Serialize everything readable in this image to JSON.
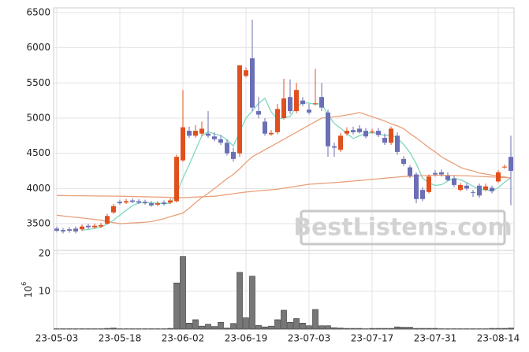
{
  "chart_data": {
    "type": "candlestick",
    "categories": [
      "23-05-03",
      null,
      null,
      null,
      null,
      null,
      null,
      null,
      null,
      null,
      "23-05-18",
      null,
      null,
      null,
      null,
      null,
      null,
      null,
      null,
      null,
      "23-06-02",
      null,
      null,
      null,
      null,
      null,
      null,
      null,
      null,
      null,
      "23-06-19",
      null,
      null,
      null,
      null,
      null,
      null,
      null,
      null,
      null,
      "23-07-03",
      null,
      null,
      null,
      null,
      null,
      null,
      null,
      null,
      null,
      "23-07-17",
      null,
      null,
      null,
      null,
      null,
      null,
      null,
      null,
      null,
      "23-07-31",
      null,
      null,
      null,
      null,
      null,
      null,
      null,
      null,
      null,
      "23-08-14",
      null,
      null
    ],
    "open": [
      3430,
      3410,
      3420,
      3430,
      3420,
      3470,
      3450,
      3460,
      3500,
      3660,
      3810,
      3800,
      3830,
      3820,
      3810,
      3790,
      3770,
      3800,
      3800,
      3820,
      4400,
      4820,
      4750,
      4780,
      4780,
      4740,
      4700,
      4650,
      4520,
      4500,
      5600,
      5850,
      5100,
      4950,
      4770,
      4800,
      5000,
      5300,
      5100,
      5250,
      5120,
      5200,
      5300,
      5080,
      4600,
      4550,
      4780,
      4830,
      4850,
      4820,
      4800,
      4820,
      4720,
      4650,
      4750,
      4420,
      4300,
      4200,
      3980,
      3950,
      4220,
      4230,
      4180,
      4140,
      3980,
      4040,
      3950,
      4040,
      3980,
      4010,
      4100,
      4300,
      4450
    ],
    "high": [
      3460,
      3440,
      3450,
      3460,
      3490,
      3500,
      3500,
      3510,
      3640,
      3780,
      3840,
      3850,
      3860,
      3850,
      3840,
      3820,
      3820,
      3830,
      3860,
      4480,
      5400,
      4880,
      4900,
      4950,
      5100,
      4800,
      4760,
      4700,
      4580,
      5750,
      5720,
      6400,
      5300,
      5000,
      4830,
      5200,
      5560,
      5550,
      5500,
      5300,
      5200,
      5700,
      5500,
      5120,
      4650,
      4790,
      4870,
      4880,
      4900,
      4860,
      4850,
      4860,
      4780,
      4880,
      4800,
      4460,
      4330,
      4230,
      4020,
      4200,
      4260,
      4270,
      4230,
      4180,
      4080,
      4080,
      3980,
      4070,
      4070,
      4040,
      4260,
      4340,
      4750
    ],
    "low": [
      3380,
      3360,
      3370,
      3360,
      3400,
      3420,
      3430,
      3440,
      3490,
      3640,
      3770,
      3780,
      3790,
      3780,
      3770,
      3740,
      3750,
      3760,
      3780,
      3800,
      4380,
      4720,
      4720,
      4750,
      4720,
      4670,
      4620,
      4470,
      4380,
      4450,
      5580,
      5100,
      5000,
      4750,
      4750,
      4770,
      4980,
      5060,
      5070,
      5170,
      5050,
      5180,
      5100,
      4450,
      4450,
      4520,
      4750,
      4770,
      4780,
      4710,
      4780,
      4730,
      4620,
      4620,
      4480,
      4320,
      4150,
      3790,
      3820,
      3930,
      4170,
      4170,
      4100,
      4020,
      3960,
      3970,
      3880,
      3870,
      3960,
      3930,
      4080,
      4280,
      3760
    ],
    "close": [
      3400,
      3390,
      3400,
      3390,
      3460,
      3450,
      3470,
      3480,
      3610,
      3750,
      3790,
      3820,
      3810,
      3800,
      3790,
      3760,
      3790,
      3780,
      3830,
      4450,
      4870,
      4750,
      4820,
      4850,
      4750,
      4700,
      4650,
      4500,
      4420,
      5750,
      5680,
      5150,
      5050,
      4780,
      4790,
      5130,
      5280,
      5100,
      5400,
      5200,
      5080,
      5210,
      5150,
      4600,
      4580,
      4750,
      4820,
      4800,
      4800,
      4740,
      4810,
      4760,
      4650,
      4850,
      4520,
      4350,
      4180,
      3850,
      3850,
      4170,
      4200,
      4200,
      4120,
      4050,
      4050,
      4000,
      3940,
      3900,
      4030,
      3960,
      4230,
      4310,
      4250
    ],
    "up_color": "#e0501e",
    "down_color": "#6b6fb5",
    "moving_averages": [
      {
        "color": "#7fd8be",
        "values": [
          null,
          null,
          null,
          null,
          3408,
          3418,
          3434,
          3450,
          3494,
          3552,
          3620,
          3690,
          3756,
          3794,
          3804,
          3796,
          3792,
          3784,
          3792,
          3922,
          4146,
          4338,
          4544,
          4748,
          4808,
          4774,
          4754,
          4690,
          4604,
          4804,
          5000,
          5100,
          5210,
          5282,
          5090,
          4980,
          5006,
          5024,
          5160,
          5222,
          5212,
          5198,
          5208,
          5048,
          4924,
          4858,
          4780,
          4710,
          4750,
          4782,
          4794,
          4782,
          4752,
          4762,
          4716,
          4626,
          4510,
          4350,
          4150,
          4080,
          4044,
          4054,
          4108,
          4148,
          4124,
          4084,
          4032,
          3988,
          3984,
          3966,
          4012,
          4090,
          4150
        ]
      },
      {
        "color": "#e8a07a",
        "values": [
          3620,
          3610,
          3600,
          3590,
          3580,
          3570,
          3560,
          3550,
          3530,
          3515,
          3500,
          3505,
          3510,
          3515,
          3520,
          3530,
          3550,
          3570,
          3600,
          3625,
          3650,
          3720,
          3800,
          3870,
          3930,
          4000,
          4070,
          4140,
          4200,
          4280,
          4370,
          4450,
          4500,
          4550,
          4600,
          4650,
          4700,
          4750,
          4800,
          4850,
          4900,
          4950,
          5000,
          5010,
          5020,
          5030,
          5045,
          5060,
          5080,
          5050,
          5020,
          4990,
          4960,
          4920,
          4890,
          4850,
          4780,
          4720,
          4650,
          4580,
          4520,
          4450,
          4400,
          4350,
          4300,
          4270,
          4250,
          4220,
          4205,
          4190,
          4180,
          4165,
          4150
        ]
      },
      {
        "color": "#e8a07a",
        "values": [
          3900,
          3899,
          3898,
          3897,
          3896,
          3895,
          3894,
          3893,
          3892,
          3891,
          3890,
          3888,
          3886,
          3884,
          3882,
          3880,
          3878,
          3876,
          3874,
          3872,
          3870,
          3874,
          3878,
          3882,
          3886,
          3890,
          3902,
          3914,
          3926,
          3938,
          3950,
          3958,
          3966,
          3974,
          3982,
          3990,
          4004,
          4018,
          4032,
          4046,
          4060,
          4066,
          4072,
          4078,
          4084,
          4090,
          4098,
          4106,
          4114,
          4122,
          4130,
          4138,
          4146,
          4154,
          4162,
          4170,
          4174,
          4178,
          4182,
          4186,
          4190,
          4188,
          4186,
          4184,
          4182,
          4180,
          4176,
          4172,
          4168,
          4164,
          4160,
          4155,
          4150
        ]
      }
    ],
    "ylim": [
      3120,
      6567
    ],
    "yticks": [
      3500,
      4000,
      4500,
      5000,
      5500,
      6000,
      6500
    ],
    "grid": true,
    "volume": {
      "color": "#777777",
      "ylim": [
        0,
        20.8
      ],
      "yticks": [
        10,
        20
      ],
      "ylabel_base": "10",
      "ylabel_exponent": "6",
      "values": [
        0.1,
        0.1,
        0.1,
        0.1,
        0.1,
        0.1,
        0.1,
        0.1,
        0.2,
        0.3,
        0.1,
        0.1,
        0.1,
        0.1,
        0.1,
        0.1,
        0.1,
        0.1,
        0.2,
        12.2,
        19.2,
        1.6,
        2.5,
        0.8,
        1.3,
        0.7,
        1.8,
        0.3,
        1.5,
        15.0,
        3.0,
        14.0,
        1.0,
        0.6,
        0.8,
        2.5,
        5.0,
        1.8,
        2.8,
        1.6,
        0.9,
        5.2,
        0.9,
        0.9,
        0.4,
        0.3,
        0.2,
        0.2,
        0.2,
        0.1,
        0.2,
        0.2,
        0.2,
        0.2,
        0.6,
        0.5,
        0.5,
        0.2,
        0.2,
        0.2,
        0.2,
        0.1,
        0.1,
        0.1,
        0.1,
        0.1,
        0.1,
        0.1,
        0.1,
        0.2,
        0.2,
        0.2,
        0.3
      ]
    },
    "watermark": "BestListens.com"
  }
}
